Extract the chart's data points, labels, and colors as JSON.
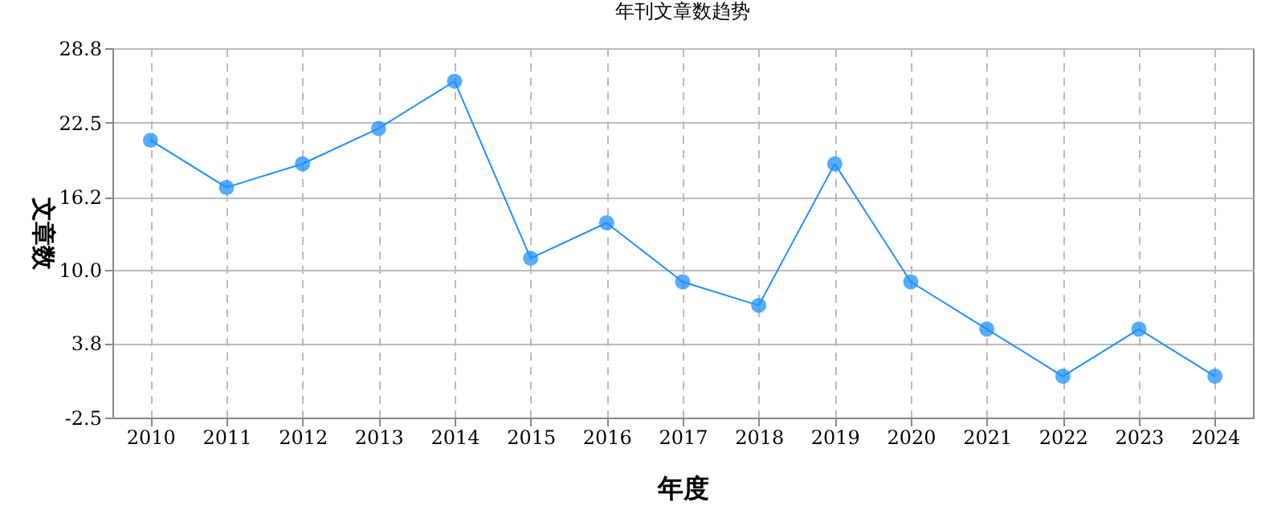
{
  "chart_data": {
    "type": "line",
    "title": "年刊文章数趋势",
    "xlabel": "年度",
    "ylabel": "文章数",
    "categories": [
      "2010",
      "2011",
      "2012",
      "2013",
      "2014",
      "2015",
      "2016",
      "2017",
      "2018",
      "2019",
      "2020",
      "2021",
      "2022",
      "2023",
      "2024"
    ],
    "series": [
      {
        "color": "#1e90ff",
        "values": [
          21,
          17,
          19,
          22,
          26,
          11,
          14,
          9,
          7,
          19,
          9,
          5,
          1,
          5,
          1
        ]
      }
    ],
    "ylim": [
      -2.5,
      28.8
    ],
    "yticks": [
      -2.5,
      3.8,
      {
        "value": 10,
        "label": "10.0"
      },
      16.2,
      22.5,
      28.8
    ],
    "grid": true,
    "marker": "circle",
    "legend": false
  }
}
